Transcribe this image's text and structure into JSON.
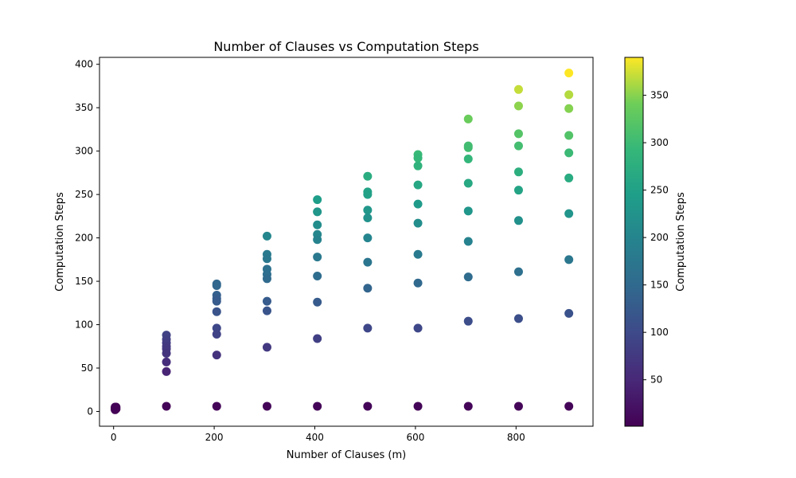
{
  "chart_data": {
    "type": "scatter",
    "title": "Number of Clauses vs Computation Steps",
    "xlabel": "Number of Clauses (m)",
    "ylabel": "Computation Steps",
    "xlim": [
      -28,
      953
    ],
    "ylim": [
      -17,
      408
    ],
    "xticks": [
      0,
      200,
      400,
      600,
      800
    ],
    "yticks": [
      0,
      50,
      100,
      150,
      200,
      250,
      300,
      350,
      400
    ],
    "grid": false,
    "colormap": "viridis",
    "colorbar": {
      "label": "Computation Steps",
      "range": [
        1,
        390
      ],
      "ticks": [
        50,
        100,
        150,
        200,
        250,
        300,
        350
      ]
    },
    "points": [
      {
        "x": 3,
        "y": 5
      },
      {
        "x": 3,
        "y": 4
      },
      {
        "x": 3,
        "y": 3
      },
      {
        "x": 3,
        "y": 2
      },
      {
        "x": 5,
        "y": 5
      },
      {
        "x": 5,
        "y": 3
      },
      {
        "x": 4,
        "y": 4
      },
      {
        "x": 105,
        "y": 88
      },
      {
        "x": 105,
        "y": 83
      },
      {
        "x": 105,
        "y": 79
      },
      {
        "x": 105,
        "y": 75
      },
      {
        "x": 105,
        "y": 72
      },
      {
        "x": 105,
        "y": 67
      },
      {
        "x": 105,
        "y": 57
      },
      {
        "x": 105,
        "y": 46
      },
      {
        "x": 105,
        "y": 6
      },
      {
        "x": 205,
        "y": 147
      },
      {
        "x": 205,
        "y": 145
      },
      {
        "x": 205,
        "y": 134
      },
      {
        "x": 205,
        "y": 130
      },
      {
        "x": 205,
        "y": 127
      },
      {
        "x": 205,
        "y": 115
      },
      {
        "x": 205,
        "y": 96
      },
      {
        "x": 205,
        "y": 89
      },
      {
        "x": 205,
        "y": 65
      },
      {
        "x": 205,
        "y": 6
      },
      {
        "x": 305,
        "y": 202
      },
      {
        "x": 305,
        "y": 181
      },
      {
        "x": 305,
        "y": 176
      },
      {
        "x": 305,
        "y": 164
      },
      {
        "x": 305,
        "y": 158
      },
      {
        "x": 305,
        "y": 153
      },
      {
        "x": 305,
        "y": 127
      },
      {
        "x": 305,
        "y": 116
      },
      {
        "x": 305,
        "y": 74
      },
      {
        "x": 305,
        "y": 6
      },
      {
        "x": 405,
        "y": 244
      },
      {
        "x": 405,
        "y": 230
      },
      {
        "x": 405,
        "y": 215
      },
      {
        "x": 405,
        "y": 204
      },
      {
        "x": 405,
        "y": 198
      },
      {
        "x": 405,
        "y": 178
      },
      {
        "x": 405,
        "y": 156
      },
      {
        "x": 405,
        "y": 126
      },
      {
        "x": 405,
        "y": 84
      },
      {
        "x": 405,
        "y": 6
      },
      {
        "x": 505,
        "y": 271
      },
      {
        "x": 505,
        "y": 253
      },
      {
        "x": 505,
        "y": 250
      },
      {
        "x": 505,
        "y": 232
      },
      {
        "x": 505,
        "y": 223
      },
      {
        "x": 505,
        "y": 200
      },
      {
        "x": 505,
        "y": 172
      },
      {
        "x": 505,
        "y": 142
      },
      {
        "x": 505,
        "y": 96
      },
      {
        "x": 505,
        "y": 6
      },
      {
        "x": 605,
        "y": 296
      },
      {
        "x": 605,
        "y": 292
      },
      {
        "x": 605,
        "y": 283
      },
      {
        "x": 605,
        "y": 261
      },
      {
        "x": 605,
        "y": 239
      },
      {
        "x": 605,
        "y": 217
      },
      {
        "x": 605,
        "y": 181
      },
      {
        "x": 605,
        "y": 148
      },
      {
        "x": 605,
        "y": 96
      },
      {
        "x": 605,
        "y": 6
      },
      {
        "x": 705,
        "y": 337
      },
      {
        "x": 705,
        "y": 306
      },
      {
        "x": 705,
        "y": 304
      },
      {
        "x": 705,
        "y": 291
      },
      {
        "x": 705,
        "y": 263
      },
      {
        "x": 705,
        "y": 231
      },
      {
        "x": 705,
        "y": 196
      },
      {
        "x": 705,
        "y": 155
      },
      {
        "x": 705,
        "y": 104
      },
      {
        "x": 705,
        "y": 6
      },
      {
        "x": 805,
        "y": 371
      },
      {
        "x": 805,
        "y": 352
      },
      {
        "x": 805,
        "y": 320
      },
      {
        "x": 805,
        "y": 306
      },
      {
        "x": 805,
        "y": 276
      },
      {
        "x": 805,
        "y": 255
      },
      {
        "x": 805,
        "y": 220
      },
      {
        "x": 805,
        "y": 161
      },
      {
        "x": 805,
        "y": 107
      },
      {
        "x": 805,
        "y": 6
      },
      {
        "x": 905,
        "y": 390
      },
      {
        "x": 905,
        "y": 365
      },
      {
        "x": 905,
        "y": 349
      },
      {
        "x": 905,
        "y": 318
      },
      {
        "x": 905,
        "y": 298
      },
      {
        "x": 905,
        "y": 269
      },
      {
        "x": 905,
        "y": 228
      },
      {
        "x": 905,
        "y": 175
      },
      {
        "x": 905,
        "y": 113
      },
      {
        "x": 905,
        "y": 6
      }
    ]
  }
}
